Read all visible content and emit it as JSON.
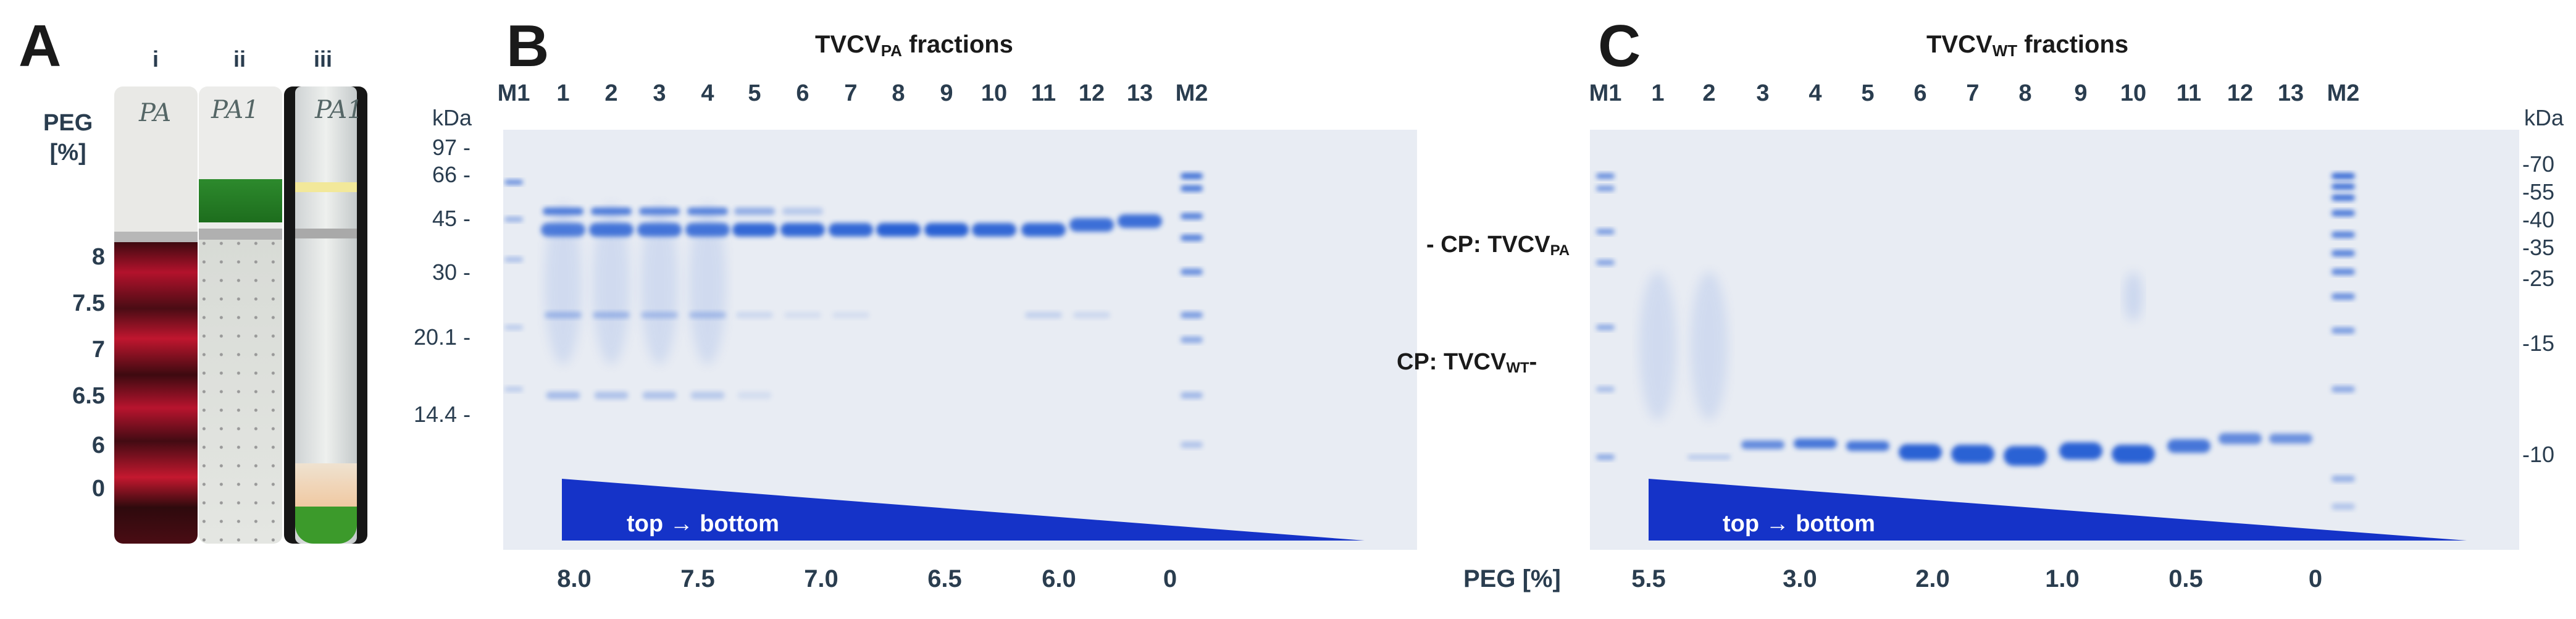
{
  "panels": {
    "A": {
      "letter": "A",
      "peg_label": "PEG",
      "peg_unit": "[%]",
      "tube_labels": [
        "i",
        "ii",
        "iii"
      ],
      "tube_handwriting": [
        "PA",
        "PA1",
        "PA1"
      ],
      "peg_ticks": [
        "8",
        "7.5",
        "7",
        "6.5",
        "6",
        "0"
      ]
    },
    "B": {
      "letter": "B",
      "title_main": "TVCV",
      "title_sub": "PA",
      "title_suffix": " fractions",
      "lanes": [
        "M1",
        "1",
        "2",
        "3",
        "4",
        "5",
        "6",
        "7",
        "8",
        "9",
        "10",
        "11",
        "12",
        "13",
        "M2"
      ],
      "kda_label": "kDa",
      "mw_markers": [
        "97 -",
        "66 -",
        "45 -",
        "30 -",
        "20.1 -",
        "14.4 -"
      ],
      "cp_label_main": "- CP: TVCV",
      "cp_label_sub": "PA",
      "wedge_label": "top → bottom",
      "bottom_values": [
        "8.0",
        "7.5",
        "7.0",
        "6.5",
        "6.0",
        "0"
      ],
      "peg_axis_label": "PEG [%]"
    },
    "C": {
      "letter": "C",
      "title_main": "TVCV",
      "title_sub": "WT",
      "title_suffix": " fractions",
      "lanes": [
        "M1",
        "1",
        "2",
        "3",
        "4",
        "5",
        "6",
        "7",
        "8",
        "9",
        "10",
        "11",
        "12",
        "13",
        "M2"
      ],
      "kda_label": "kDa",
      "mw_markers": [
        "-70",
        "-55",
        "-40",
        "-35",
        "-25",
        "-15",
        "-10"
      ],
      "cp_label_main": "CP: TVCV",
      "cp_label_sub": "WT",
      "cp_label_dash": "-",
      "wedge_label": "top → bottom",
      "bottom_values": [
        "5.5",
        "3.0",
        "2.0",
        "1.0",
        "0.5",
        "0"
      ]
    }
  },
  "colors": {
    "gel_background": "#e6ebf3",
    "band_blue": "#2a62d4",
    "wedge_blue": "#1533c8",
    "tube_red": "#9a0b22",
    "tube_green": "#2a8a2a"
  }
}
